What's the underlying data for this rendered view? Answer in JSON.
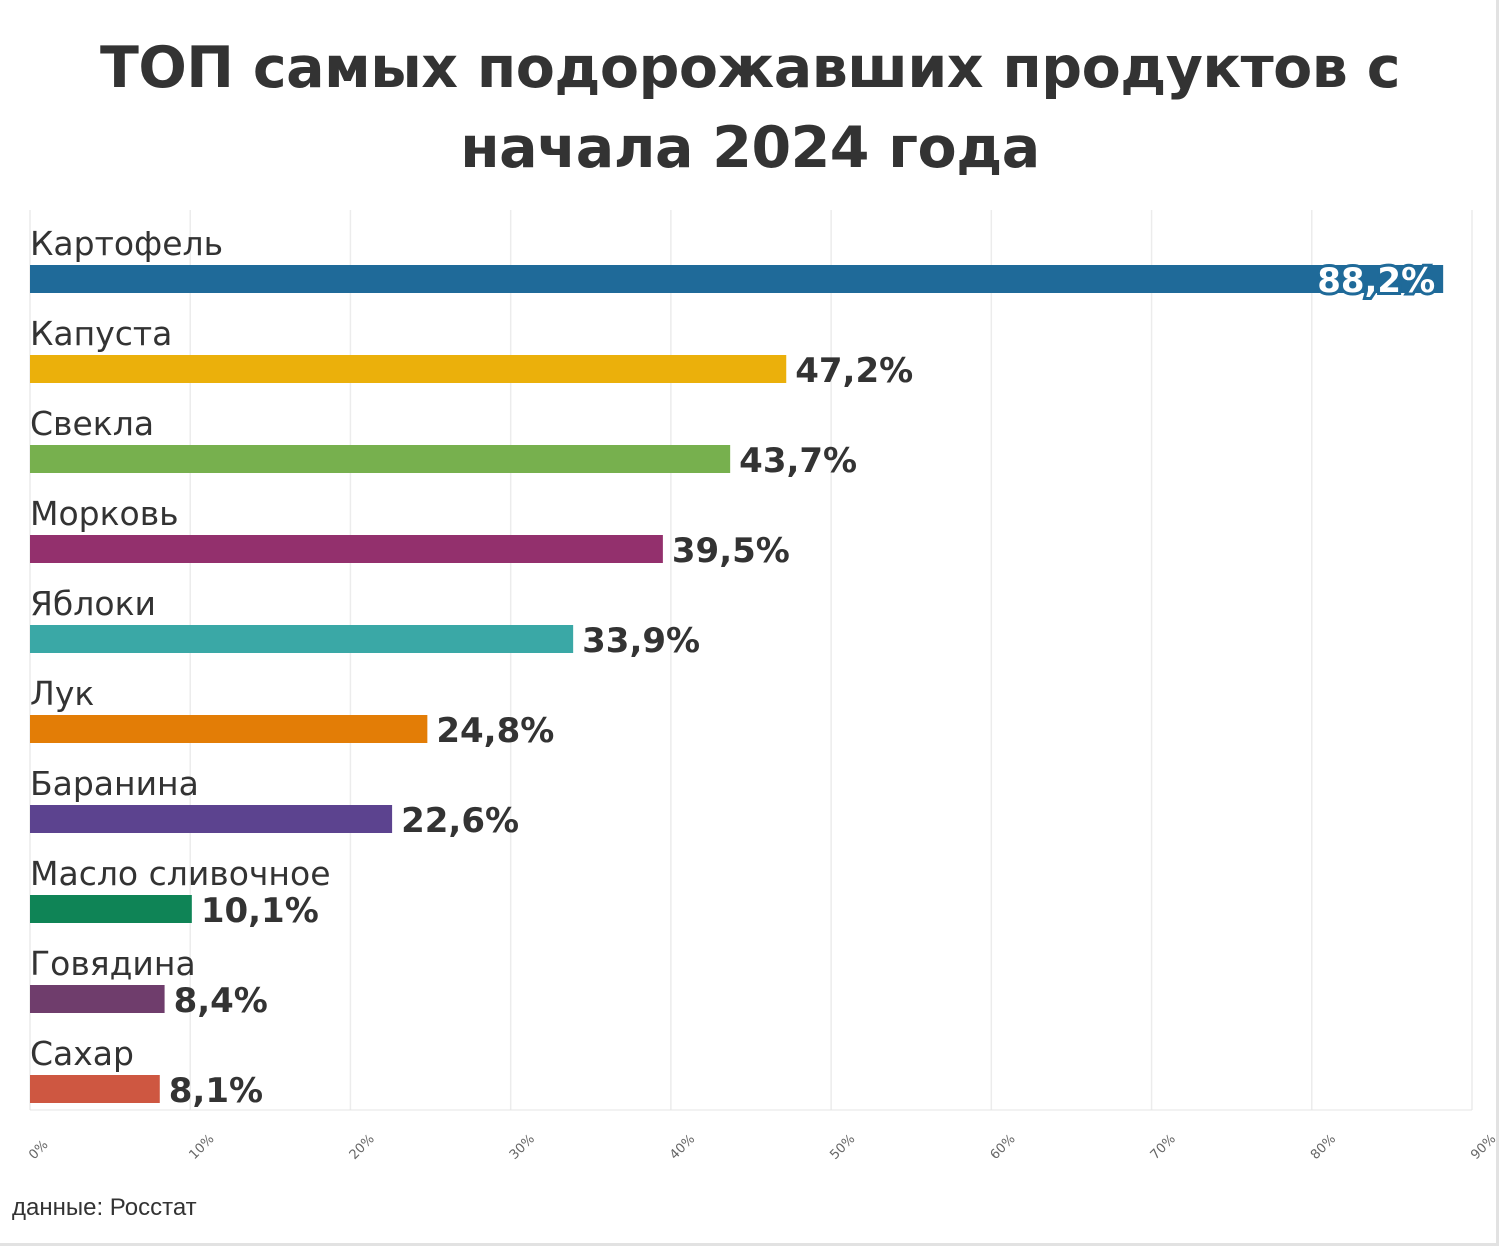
{
  "title": "ТОП самых подорожавших продуктов с начала 2024 года",
  "source": "данные: Росстат",
  "chart_data": {
    "type": "bar",
    "orientation": "horizontal",
    "title": "ТОП самых подорожавших продуктов с начала 2024 года",
    "xlabel": "",
    "ylabel": "",
    "xlim": [
      0,
      90
    ],
    "grid": true,
    "categories": [
      "Картофель",
      "Капуста",
      "Свекла",
      "Морковь",
      "Яблоки",
      "Лук",
      "Баранина",
      "Масло сливочное",
      "Говядина",
      "Сахар"
    ],
    "values": [
      88.2,
      47.2,
      43.7,
      39.5,
      33.9,
      24.8,
      22.6,
      10.1,
      8.4,
      8.1
    ],
    "value_labels": [
      "88,2%",
      "47,2%",
      "43,7%",
      "39,5%",
      "33,9%",
      "24,8%",
      "22,6%",
      "10,1%",
      "8,4%",
      "8,1%"
    ],
    "colors": [
      "#1f6a99",
      "#ebb00b",
      "#77b04e",
      "#93306d",
      "#3aa8a6",
      "#e37d06",
      "#5c438f",
      "#0f8456",
      "#6f3d6c",
      "#ce5741"
    ],
    "ticks": [
      0,
      10,
      20,
      30,
      40,
      50,
      60,
      70,
      80,
      90
    ],
    "tick_labels": [
      "0%",
      "10%",
      "20%",
      "30%",
      "40%",
      "50%",
      "60%",
      "70%",
      "80%",
      "90%"
    ]
  }
}
